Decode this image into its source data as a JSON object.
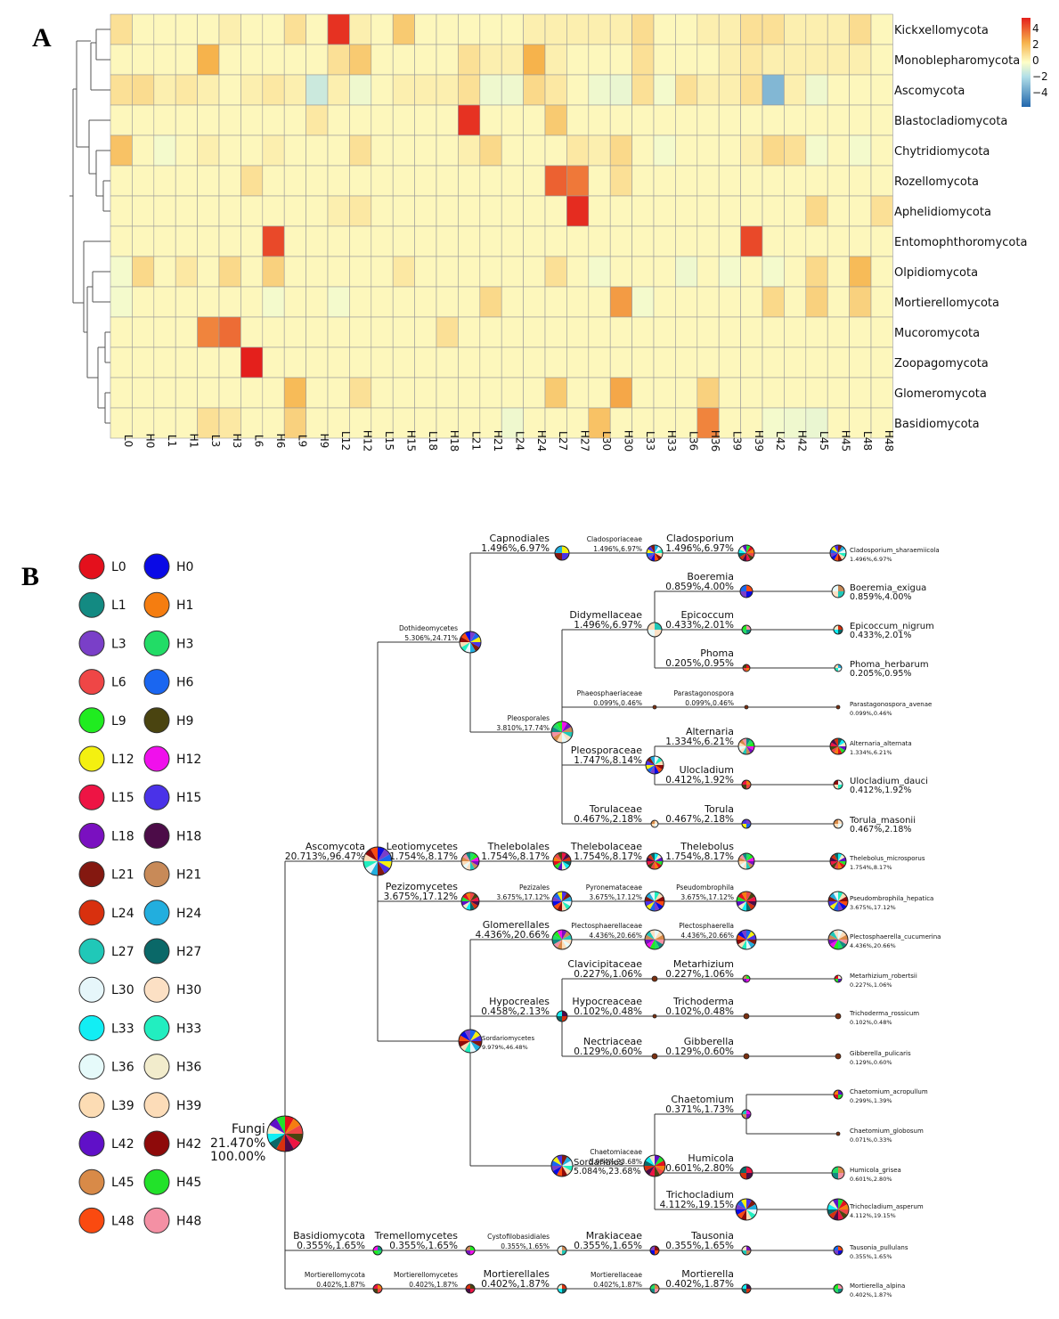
{
  "panels": {
    "a": "A",
    "b": "B"
  },
  "chart_data": [
    {
      "type": "heatmap",
      "title": "",
      "rows": [
        "Kickxellomycota",
        "Monoblepharomycota",
        "Ascomycota",
        "Blastocladiomycota",
        "Chytridiomycota",
        "Rozellomycota",
        "Aphelidiomycota",
        "Entomophthoromycota",
        "Olpidiomycota",
        "Mortierellomycota",
        "Mucoromycota",
        "Zoopagomycota",
        "Glomeromycota",
        "Basidiomycota"
      ],
      "columns": [
        "L0",
        "H0",
        "L1",
        "H1",
        "L3",
        "H3",
        "L6",
        "H6",
        "L9",
        "H9",
        "L12",
        "H12",
        "L15",
        "H15",
        "L18",
        "H18",
        "L21",
        "H21",
        "L24",
        "H24",
        "L27",
        "H27",
        "L30",
        "H30",
        "L33",
        "H33",
        "L36",
        "H36",
        "L39",
        "H39",
        "L42",
        "H42",
        "L45",
        "H45",
        "L48",
        "H48"
      ],
      "values": [
        [
          0.8,
          0.2,
          0.2,
          0.2,
          0.2,
          0.4,
          0.2,
          0.2,
          0.8,
          0.2,
          4.2,
          0.4,
          0.2,
          1.4,
          0.2,
          0.2,
          0.2,
          0.2,
          0.2,
          0.4,
          0.4,
          0.4,
          0.4,
          0.4,
          0.9,
          0.2,
          0.2,
          0.4,
          0.4,
          0.8,
          0.8,
          0.4,
          0.4,
          0.4,
          0.9,
          0.2
        ],
        [
          0.2,
          0.2,
          0.2,
          0.2,
          2.0,
          0.2,
          0.2,
          0.2,
          0.2,
          0.2,
          0.8,
          1.4,
          0.2,
          0.2,
          0.2,
          0.2,
          0.8,
          0.4,
          0.4,
          2.0,
          0.4,
          0.2,
          0.2,
          0.2,
          0.8,
          0.2,
          0.2,
          0.2,
          0.4,
          0.6,
          0.4,
          0.4,
          0.4,
          0.4,
          0.4,
          0.2
        ],
        [
          0.8,
          0.9,
          0.4,
          0.6,
          0.4,
          0.2,
          0.4,
          0.6,
          0.4,
          -1.0,
          0.4,
          -0.3,
          0.2,
          0.4,
          0.4,
          0.4,
          0.8,
          -0.3,
          -0.3,
          1.0,
          0.6,
          0.2,
          -0.3,
          -0.4,
          0.8,
          -0.2,
          0.8,
          0.4,
          0.4,
          0.8,
          -2.5,
          0.4,
          -0.3,
          0.2,
          0.2,
          0.2
        ],
        [
          0.2,
          0.2,
          0.2,
          0.2,
          0.2,
          0.2,
          0.2,
          0.2,
          0.2,
          0.6,
          0.2,
          0.2,
          0.2,
          0.2,
          0.2,
          0.2,
          4.2,
          0.2,
          0.2,
          0.2,
          1.4,
          0.2,
          0.2,
          0.2,
          0.2,
          0.2,
          0.2,
          0.2,
          0.2,
          0.2,
          0.2,
          0.2,
          0.2,
          0.2,
          0.2,
          0.2
        ],
        [
          1.6,
          0.2,
          -0.2,
          0.2,
          0.4,
          0.2,
          0.2,
          0.4,
          0.2,
          0.2,
          0.2,
          0.8,
          0.2,
          0.2,
          0.2,
          0.2,
          0.4,
          1.0,
          0.2,
          0.2,
          0.2,
          0.6,
          0.4,
          1.0,
          0.2,
          -0.2,
          0.2,
          0.2,
          0.2,
          0.4,
          1.0,
          0.8,
          -0.2,
          0.2,
          -0.2,
          0.2
        ],
        [
          0.2,
          0.2,
          0.2,
          0.2,
          0.2,
          0.2,
          0.8,
          0.2,
          0.2,
          0.2,
          0.2,
          0.2,
          0.2,
          0.2,
          0.2,
          0.2,
          0.2,
          0.2,
          0.2,
          0.2,
          3.4,
          3.0,
          0.2,
          0.8,
          0.2,
          0.2,
          0.2,
          0.2,
          0.2,
          0.2,
          0.2,
          0.2,
          0.2,
          0.2,
          0.2,
          0.2
        ],
        [
          0.2,
          0.2,
          0.2,
          0.2,
          0.2,
          0.2,
          0.2,
          0.2,
          0.2,
          0.2,
          0.4,
          0.6,
          0.2,
          0.2,
          0.2,
          0.2,
          0.2,
          0.2,
          0.2,
          0.2,
          0.2,
          4.3,
          0.2,
          0.2,
          0.2,
          0.2,
          0.2,
          0.2,
          0.2,
          0.2,
          0.2,
          0.2,
          1.0,
          0.2,
          0.2,
          0.8
        ],
        [
          0.2,
          0.2,
          0.2,
          0.2,
          0.2,
          0.2,
          0.2,
          3.8,
          0.2,
          0.2,
          0.2,
          0.2,
          0.2,
          0.2,
          0.2,
          0.2,
          0.2,
          0.2,
          0.2,
          0.2,
          0.2,
          0.2,
          0.2,
          0.2,
          0.2,
          0.2,
          0.2,
          0.2,
          0.2,
          3.8,
          0.2,
          0.2,
          0.2,
          0.2,
          0.2,
          0.2
        ],
        [
          -0.2,
          1.0,
          0.2,
          0.6,
          0.2,
          1.0,
          0.2,
          1.2,
          0.2,
          0.2,
          0.2,
          0.2,
          0.2,
          0.6,
          0.2,
          0.2,
          0.2,
          0.2,
          0.2,
          0.2,
          0.8,
          0.2,
          -0.2,
          0.2,
          0.2,
          0.2,
          -0.3,
          0.2,
          -0.2,
          0.2,
          -0.2,
          0.2,
          1.0,
          0.2,
          1.8,
          0.2
        ],
        [
          -0.2,
          0.2,
          0.2,
          0.2,
          0.2,
          0.2,
          0.2,
          -0.2,
          0.2,
          0.2,
          -0.2,
          0.2,
          0.2,
          0.2,
          0.2,
          0.2,
          0.2,
          1.0,
          0.2,
          0.2,
          0.2,
          0.2,
          0.2,
          2.4,
          -0.2,
          0.2,
          0.2,
          0.2,
          0.2,
          0.2,
          1.0,
          0.2,
          1.2,
          0.2,
          1.2,
          0.2
        ],
        [
          0.2,
          0.2,
          0.2,
          0.2,
          2.8,
          3.2,
          0.2,
          0.2,
          0.2,
          0.2,
          0.2,
          0.2,
          0.2,
          0.2,
          0.2,
          0.8,
          0.2,
          0.2,
          0.2,
          0.2,
          0.2,
          0.2,
          0.2,
          0.2,
          0.2,
          0.2,
          0.2,
          0.2,
          0.2,
          0.2,
          0.2,
          0.2,
          0.2,
          0.2,
          0.2,
          0.2
        ],
        [
          0.2,
          0.2,
          0.2,
          0.2,
          0.2,
          0.2,
          4.5,
          0.2,
          0.2,
          0.2,
          0.2,
          0.2,
          0.2,
          0.2,
          0.2,
          0.2,
          0.2,
          0.2,
          0.2,
          0.2,
          0.2,
          0.2,
          0.2,
          0.2,
          0.2,
          0.2,
          0.2,
          0.2,
          0.2,
          0.2,
          0.2,
          0.2,
          0.2,
          0.2,
          0.2,
          0.2
        ],
        [
          0.2,
          0.2,
          0.2,
          0.2,
          0.2,
          0.2,
          0.2,
          0.2,
          1.8,
          0.2,
          0.2,
          0.8,
          0.2,
          0.2,
          0.2,
          0.2,
          0.2,
          0.2,
          0.2,
          0.2,
          1.4,
          0.2,
          0.2,
          2.2,
          0.2,
          0.2,
          0.2,
          1.2,
          0.2,
          0.2,
          0.2,
          0.2,
          0.2,
          0.2,
          0.2,
          0.2
        ],
        [
          0.2,
          0.2,
          0.2,
          0.2,
          0.8,
          0.6,
          0.2,
          0.2,
          1.2,
          0.2,
          0.2,
          0.2,
          0.2,
          0.2,
          0.2,
          0.2,
          0.2,
          0.2,
          -0.3,
          0.2,
          0.2,
          0.2,
          1.6,
          0.2,
          0.2,
          0.2,
          0.2,
          2.8,
          0.2,
          0.2,
          -0.2,
          -0.3,
          -0.4,
          0.2,
          0.2,
          0.2
        ]
      ],
      "color_scale": {
        "min": -4.5,
        "max": 4.5,
        "ticks": [
          "4",
          "2",
          "0",
          "−2",
          "−4"
        ],
        "colors": {
          "low": "#2166ac",
          "mid_low": "#b2dfe8",
          "mid": "#fefec8",
          "mid_high": "#f6b34c",
          "high": "#e4201c"
        }
      },
      "row_dendrogram": true
    },
    {
      "type": "tree",
      "title": "",
      "legend": [
        "L0",
        "H0",
        "L1",
        "H1",
        "L3",
        "H3",
        "L6",
        "H6",
        "L9",
        "H9",
        "L12",
        "H12",
        "L15",
        "H15",
        "L18",
        "H18",
        "L21",
        "H21",
        "L24",
        "H24",
        "L27",
        "H27",
        "L30",
        "H30",
        "L33",
        "H33",
        "L36",
        "H36",
        "L39",
        "H39",
        "L42",
        "H42",
        "L45",
        "H45",
        "L48",
        "H48"
      ],
      "legend_colors": [
        "#e4101c",
        "#0a0ae6",
        "#138a82",
        "#f57d10",
        "#7a3fc8",
        "#22dc66",
        "#ef4646",
        "#1a66f0",
        "#20ec20",
        "#4a4410",
        "#f4f010",
        "#f010ec",
        "#ee1444",
        "#4a32e8",
        "#7a10c0",
        "#4c0c48",
        "#841810",
        "#c88a58",
        "#d8300e",
        "#22aede",
        "#20c8b8",
        "#0a6868",
        "#e6f6fa",
        "#fce0c4",
        "#12eef4",
        "#22eec0",
        "#e6fafa",
        "#f2eccc",
        "#fcdcb4",
        "#fcdcb8",
        "#6010c8",
        "#8e0a0a",
        "#d88a48",
        "#22e22a",
        "#fa4a10",
        "#f490a4"
      ],
      "nodes": [
        {
          "id": "fungi",
          "name": "Fungi",
          "pct": "21.470%",
          "pct2": "100.00%"
        },
        {
          "id": "asco",
          "name": "Ascomycota",
          "val": "20.713%,96.47%"
        },
        {
          "id": "basi",
          "name": "Basidiomycota",
          "val": "0.355%,1.65%"
        },
        {
          "id": "mortp",
          "name": "Mortierellomycota",
          "val": "0.402%,1.87%"
        },
        {
          "id": "doth",
          "name": "Dothideomycetes",
          "val": "5.306%,24.71%"
        },
        {
          "id": "leot",
          "name": "Leotiomycetes",
          "val": "1.754%,8.17%"
        },
        {
          "id": "peziC",
          "name": "Pezizomycetes",
          "val": "3.675%,17.12%"
        },
        {
          "id": "sord",
          "name": "Sordariomycetes",
          "val": "9.979%,46.48%"
        },
        {
          "id": "tremC",
          "name": "Tremellomycetes",
          "val": "0.355%,1.65%"
        },
        {
          "id": "mortC",
          "name": "Mortierellomycetes",
          "val": "0.402%,1.87%"
        },
        {
          "id": "capn",
          "name": "Capnodiales",
          "val": "1.496%,6.97%"
        },
        {
          "id": "pleo",
          "name": "Pleosporales",
          "val": "3.810%,17.74%"
        },
        {
          "id": "theO",
          "name": "Thelebolales",
          "val": "1.754%,8.17%"
        },
        {
          "id": "pezO",
          "name": "Pezizales",
          "val": "3.675%,17.12%"
        },
        {
          "id": "glomO",
          "name": "Glomerellales",
          "val": "4.436%,20.66%"
        },
        {
          "id": "hypoO",
          "name": "Hypocreales",
          "val": "0.458%,2.13%"
        },
        {
          "id": "sordO",
          "name": "Sordariales",
          "val": "5.084%,23.68%"
        },
        {
          "id": "cystO",
          "name": "Cystofilobasidiales",
          "val": "0.355%,1.65%"
        },
        {
          "id": "mortO",
          "name": "Mortierellales",
          "val": "0.402%,1.87%"
        },
        {
          "id": "clados",
          "name": "Cladosporiaceae",
          "val": "1.496%,6.97%"
        },
        {
          "id": "didy",
          "name": "Didymellaceae",
          "val": "1.496%,6.97%"
        },
        {
          "id": "phaeo",
          "name": "Phaeosphaeriaceae",
          "val": "0.099%,0.46%"
        },
        {
          "id": "pleoF",
          "name": "Pleosporaceae",
          "val": "1.747%,8.14%"
        },
        {
          "id": "toruF",
          "name": "Torulaceae",
          "val": "0.467%,2.18%"
        },
        {
          "id": "theF",
          "name": "Thelebolaceae",
          "val": "1.754%,8.17%"
        },
        {
          "id": "pyro",
          "name": "Pyronemataceae",
          "val": "3.675%,17.12%"
        },
        {
          "id": "plecF",
          "name": "Plectosphaerellaceae",
          "val": "4.436%,20.66%"
        },
        {
          "id": "clav",
          "name": "Clavicipitaceae",
          "val": "0.227%,1.06%"
        },
        {
          "id": "hypF",
          "name": "Hypocreaceae",
          "val": "0.102%,0.48%"
        },
        {
          "id": "nect",
          "name": "Nectriaceae",
          "val": "0.129%,0.60%"
        },
        {
          "id": "chaeF",
          "name": "Chaetomiaceae",
          "val": "5.084%,23.68%"
        },
        {
          "id": "mrak",
          "name": "Mrakiaceae",
          "val": "0.355%,1.65%"
        },
        {
          "id": "mortF",
          "name": "Mortierellaceae",
          "val": "0.402%,1.87%"
        },
        {
          "id": "cladG",
          "name": "Cladosporium",
          "val": "1.496%,6.97%"
        },
        {
          "id": "boer",
          "name": "Boeremia",
          "val": "0.859%,4.00%"
        },
        {
          "id": "epic",
          "name": "Epicoccum",
          "val": "0.433%,2.01%"
        },
        {
          "id": "phoma",
          "name": "Phoma",
          "val": "0.205%,0.95%"
        },
        {
          "id": "para",
          "name": "Parastagonospora",
          "val": "0.099%,0.46%"
        },
        {
          "id": "alt",
          "name": "Alternaria",
          "val": "1.334%,6.21%"
        },
        {
          "id": "uloc",
          "name": "Ulocladium",
          "val": "0.412%,1.92%"
        },
        {
          "id": "toruG",
          "name": "Torula",
          "val": "0.467%,2.18%"
        },
        {
          "id": "theG",
          "name": "Thelebolus",
          "val": "1.754%,8.17%"
        },
        {
          "id": "pseu",
          "name": "Pseudombrophila",
          "val": "3.675%,17.12%"
        },
        {
          "id": "plecG",
          "name": "Plectosphaerella",
          "val": "4.436%,20.66%"
        },
        {
          "id": "meta",
          "name": "Metarhizium",
          "val": "0.227%,1.06%"
        },
        {
          "id": "tric",
          "name": "Trichoderma",
          "val": "0.102%,0.48%"
        },
        {
          "id": "gibb",
          "name": "Gibberella",
          "val": "0.129%,0.60%"
        },
        {
          "id": "chaeG",
          "name": "Chaetomium",
          "val": "0.371%,1.73%"
        },
        {
          "id": "humi",
          "name": "Humicola",
          "val": "0.601%,2.80%"
        },
        {
          "id": "tricl",
          "name": "Trichocladium",
          "val": "4.112%,19.15%"
        },
        {
          "id": "taus",
          "name": "Tausonia",
          "val": "0.355%,1.65%"
        },
        {
          "id": "mortG",
          "name": "Mortierella",
          "val": "0.402%,1.87%"
        },
        {
          "id": "s1",
          "name": "Cladosporium_sharaemiicola",
          "val": "1.496%,6.97%"
        },
        {
          "id": "s2",
          "name": "Boeremia_exigua",
          "val": "0.859%,4.00%"
        },
        {
          "id": "s3",
          "name": "Epicoccum_nigrum",
          "val": "0.433%,2.01%"
        },
        {
          "id": "s4",
          "name": "Phoma_herbarum",
          "val": "0.205%,0.95%"
        },
        {
          "id": "s5",
          "name": "Parastagonospora_avenae",
          "val": "0.099%,0.46%"
        },
        {
          "id": "s6",
          "name": "Alternaria_alternata",
          "val": "1.334%,6.21%"
        },
        {
          "id": "s7",
          "name": "Ulocladium_dauci",
          "val": "0.412%,1.92%"
        },
        {
          "id": "s8",
          "name": "Torula_masonii",
          "val": "0.467%,2.18%"
        },
        {
          "id": "s9",
          "name": "Thelebolus_microsporus",
          "val": "1.754%,8.17%"
        },
        {
          "id": "s10",
          "name": "Pseudombrophila_hepatica",
          "val": "3.675%,17.12%"
        },
        {
          "id": "s11",
          "name": "Plectosphaerella_cucumerina",
          "val": "4.436%,20.66%"
        },
        {
          "id": "s12",
          "name": "Metarhizium_robertsii",
          "val": "0.227%,1.06%"
        },
        {
          "id": "s13",
          "name": "Trichoderma_rossicum",
          "val": "0.102%,0.48%"
        },
        {
          "id": "s14",
          "name": "Gibberella_pulicaris",
          "val": "0.129%,0.60%"
        },
        {
          "id": "s15",
          "name": "Chaetomium_acropullum",
          "val": "0.299%,1.39%"
        },
        {
          "id": "s16",
          "name": "Chaetomium_globosum",
          "val": "0.071%,0.33%"
        },
        {
          "id": "s17",
          "name": "Humicola_grisea",
          "val": "0.601%,2.80%"
        },
        {
          "id": "s18",
          "name": "Trichocladium_asperum",
          "val": "4.112%,19.15%"
        },
        {
          "id": "s19",
          "name": "Tausonia_pullulans",
          "val": "0.355%,1.65%"
        },
        {
          "id": "s20",
          "name": "Mortierella_alpina",
          "val": "0.402%,1.87%"
        }
      ]
    }
  ]
}
